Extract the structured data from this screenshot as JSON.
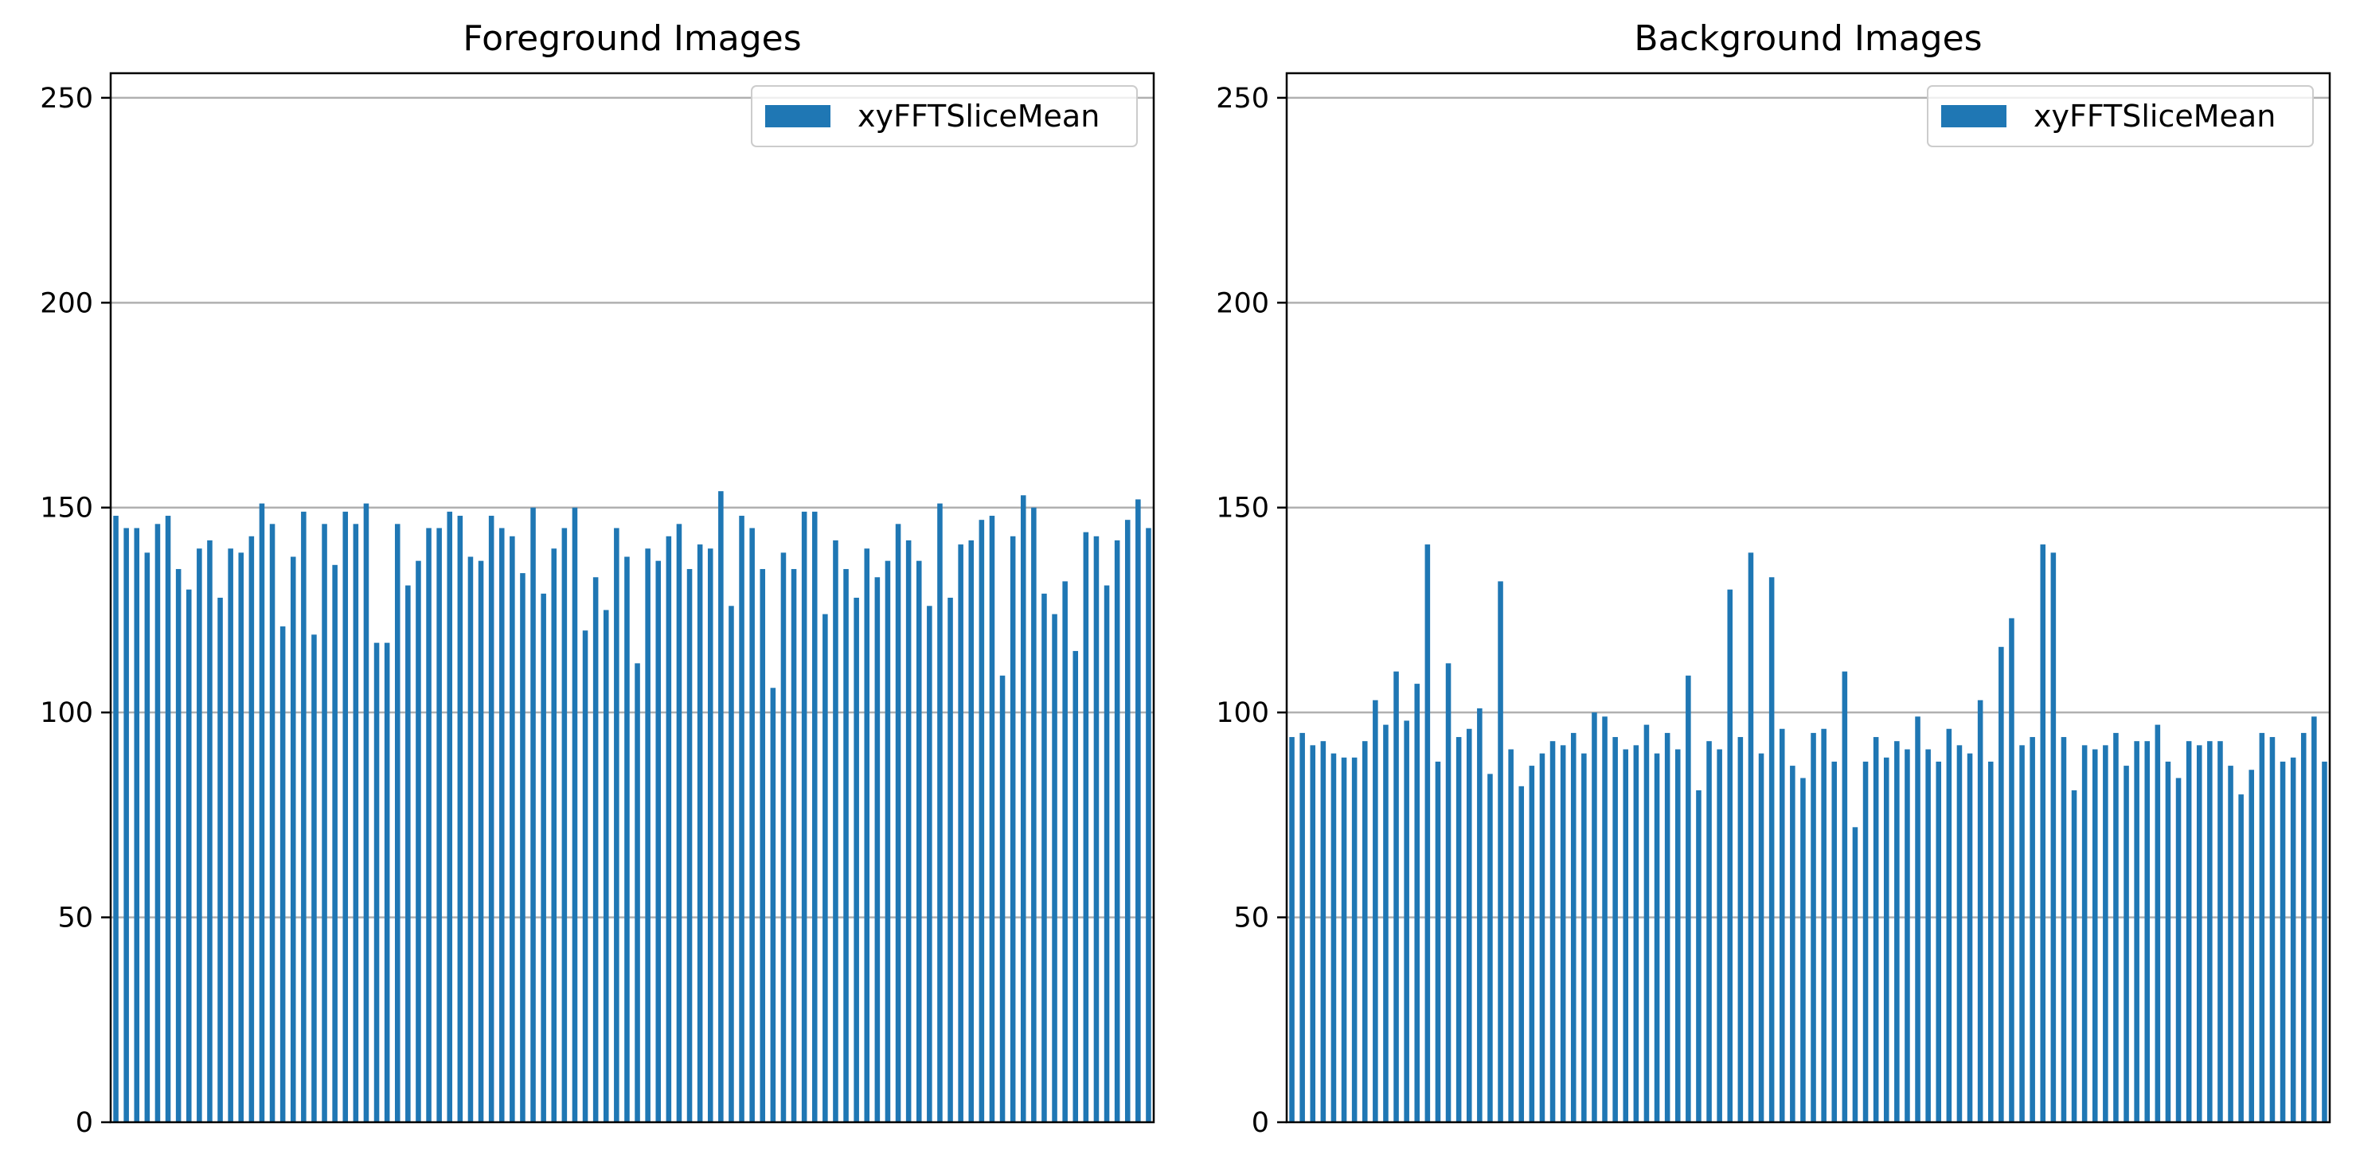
{
  "chart_data": [
    {
      "type": "bar",
      "title": "Foreground Images",
      "xlabel": "",
      "ylabel": "",
      "ylim": [
        0,
        256
      ],
      "yticks": [
        0,
        50,
        100,
        150,
        200,
        250
      ],
      "grid": "y",
      "legend_position": "top-right",
      "series": [
        {
          "name": "xyFFTSliceMean",
          "color": "#1f77b4",
          "values": [
            148,
            145,
            145,
            139,
            146,
            148,
            135,
            130,
            140,
            142,
            128,
            140,
            139,
            143,
            151,
            146,
            121,
            138,
            149,
            119,
            146,
            136,
            149,
            146,
            151,
            117,
            117,
            146,
            131,
            137,
            145,
            145,
            149,
            148,
            138,
            137,
            148,
            145,
            143,
            134,
            150,
            129,
            140,
            145,
            150,
            120,
            133,
            125,
            145,
            138,
            112,
            140,
            137,
            143,
            146,
            135,
            141,
            140,
            154,
            126,
            148,
            145,
            135,
            106,
            139,
            135,
            149,
            149,
            124,
            142,
            135,
            128,
            140,
            133,
            137,
            146,
            142,
            137,
            126,
            151,
            128,
            141,
            142,
            147,
            148,
            109,
            143,
            153,
            150,
            129,
            124,
            132,
            115,
            144,
            143,
            131,
            142,
            147,
            152,
            145
          ]
        }
      ]
    },
    {
      "type": "bar",
      "title": "Background Images",
      "xlabel": "",
      "ylabel": "",
      "ylim": [
        0,
        256
      ],
      "yticks": [
        0,
        50,
        100,
        150,
        200,
        250
      ],
      "grid": "y",
      "legend_position": "top-right",
      "series": [
        {
          "name": "xyFFTSliceMean",
          "color": "#1f77b4",
          "values": [
            94,
            95,
            92,
            93,
            90,
            89,
            89,
            93,
            103,
            97,
            110,
            98,
            107,
            141,
            88,
            112,
            94,
            96,
            101,
            85,
            132,
            91,
            82,
            87,
            90,
            93,
            92,
            95,
            90,
            100,
            99,
            94,
            91,
            92,
            97,
            90,
            95,
            91,
            109,
            81,
            93,
            91,
            130,
            94,
            139,
            90,
            133,
            96,
            87,
            84,
            95,
            96,
            88,
            110,
            72,
            88,
            94,
            89,
            93,
            91,
            99,
            91,
            88,
            96,
            92,
            90,
            103,
            88,
            116,
            123,
            92,
            94,
            141,
            139,
            94,
            81,
            92,
            91,
            92,
            95,
            87,
            93,
            93,
            97,
            88,
            84,
            93,
            92,
            93,
            93,
            87,
            80,
            86,
            95,
            94,
            88,
            89,
            95,
            99,
            88
          ]
        }
      ]
    }
  ]
}
